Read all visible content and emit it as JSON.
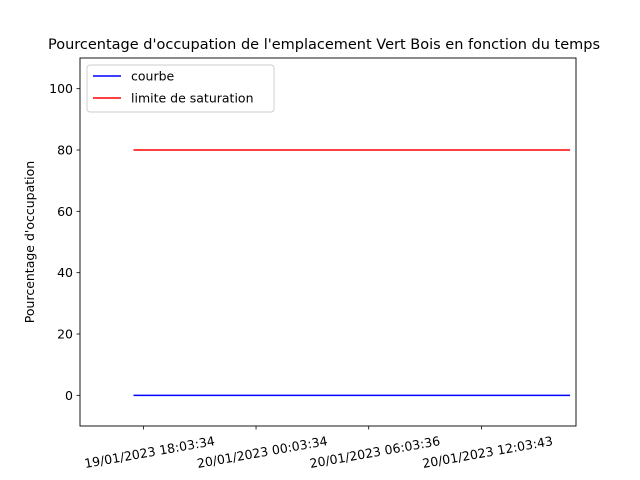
{
  "chart_data": {
    "type": "line",
    "title": "Pourcentage d'occupation de l'emplacement Vert Bois en fonction du temps",
    "xlabel": "",
    "ylabel": "Pourcentage d'occupation",
    "x_tick_labels": [
      "19/01/2023 18:03:34",
      "20/01/2023 00:03:34",
      "20/01/2023 06:03:36",
      "20/01/2023 12:03:43"
    ],
    "x_ticks": [
      "2023-01-19 18:03:34",
      "2023-01-20 00:03:34",
      "2023-01-20 06:03:36",
      "2023-01-20 12:03:43"
    ],
    "xlim": [
      "2023-01-19 14:41:00",
      "2023-01-20 17:06:00"
    ],
    "y_ticks": [
      0,
      20,
      40,
      60,
      80,
      100
    ],
    "ylim": [
      -10,
      110
    ],
    "grid": false,
    "legend_position": "upper-left",
    "series": [
      {
        "name": "courbe",
        "color": "#0000ff",
        "x": [
          "2023-01-19 17:32:00",
          "2023-01-20 16:47:00"
        ],
        "y": [
          0,
          0
        ]
      },
      {
        "name": "limite de saturation",
        "color": "#ff0000",
        "x": [
          "2023-01-19 17:32:00",
          "2023-01-20 16:47:00"
        ],
        "y": [
          80,
          80
        ]
      }
    ]
  }
}
